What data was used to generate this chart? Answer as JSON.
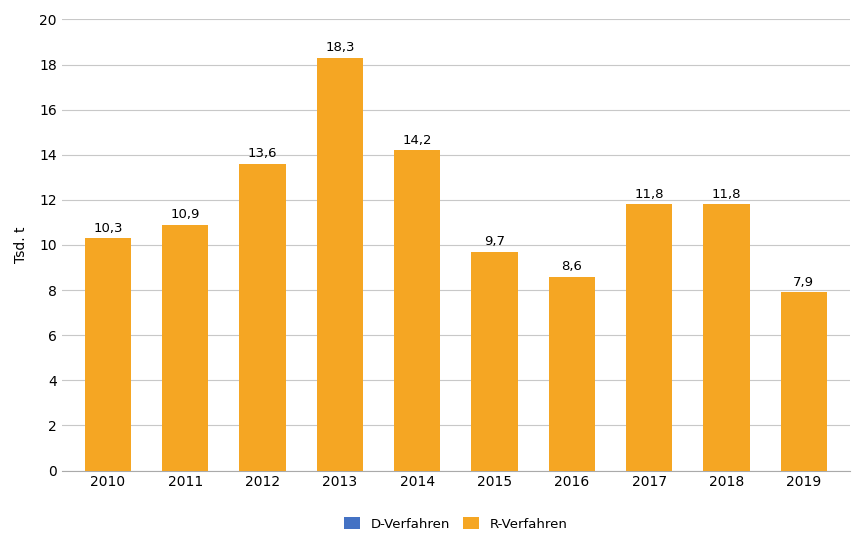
{
  "years": [
    2010,
    2011,
    2012,
    2013,
    2014,
    2015,
    2016,
    2017,
    2018,
    2019
  ],
  "d_verfahren": [
    10.3,
    10.9,
    13.6,
    0.001,
    14.2,
    9.7,
    8.6,
    11.8,
    11.8,
    7.9
  ],
  "r_verfahren": [
    10.3,
    10.9,
    13.6,
    18.3,
    14.2,
    9.7,
    8.6,
    11.8,
    11.8,
    7.9
  ],
  "d_color": "#4472C4",
  "r_color": "#F5A623",
  "ylabel": "Tsd. t",
  "ylim": [
    0,
    20
  ],
  "yticks": [
    0,
    2,
    4,
    6,
    8,
    10,
    12,
    14,
    16,
    18,
    20
  ],
  "legend_d": "D-Verfahren",
  "legend_r": "R-Verfahren",
  "bar_width": 0.6,
  "background_color": "#ffffff",
  "grid_color": "#c8c8c8",
  "label_fontsize": 9.5,
  "axis_fontsize": 10,
  "legend_fontsize": 9.5
}
